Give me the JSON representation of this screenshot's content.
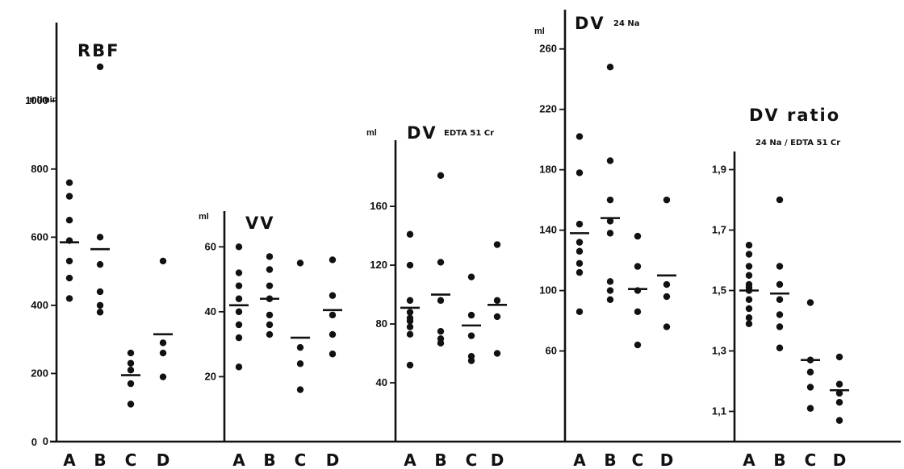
{
  "chart_data": [
    {
      "type": "scatter",
      "title": "RBF",
      "unit": "ml/min",
      "categories": [
        "A",
        "B",
        "C",
        "D"
      ],
      "yticks": [
        0,
        200,
        400,
        600,
        800,
        1000
      ],
      "ylim": [
        0,
        1230
      ],
      "points": [
        [
          420,
          480,
          530,
          590,
          650,
          720,
          760
        ],
        [
          380,
          400,
          440,
          520,
          600,
          1100
        ],
        [
          110,
          170,
          210,
          230,
          260
        ],
        [
          190,
          260,
          290,
          530
        ]
      ],
      "means": [
        585,
        565,
        195,
        315
      ]
    },
    {
      "type": "scatter",
      "title": "VV",
      "unit": "ml",
      "categories": [
        "A",
        "B",
        "C",
        "D"
      ],
      "yticks": [
        20,
        40,
        60
      ],
      "ylim": [
        0,
        71
      ],
      "points": [
        [
          23,
          32,
          36,
          40,
          44,
          48,
          52,
          60
        ],
        [
          33,
          36,
          39,
          44,
          48,
          53,
          57
        ],
        [
          16,
          24,
          29,
          55
        ],
        [
          27,
          33,
          39,
          45,
          56
        ]
      ],
      "means": [
        42,
        44,
        32,
        40.5
      ]
    },
    {
      "type": "scatter",
      "title": "DV",
      "subtitle": "EDTA 51 Cr",
      "unit": "ml",
      "categories": [
        "A",
        "B",
        "C",
        "D"
      ],
      "yticks": [
        40,
        80,
        120,
        160
      ],
      "ylim": [
        0,
        205
      ],
      "points": [
        [
          52,
          73,
          78,
          82,
          84,
          88,
          96,
          120,
          141
        ],
        [
          67,
          70,
          75,
          96,
          122,
          181
        ],
        [
          55,
          58,
          72,
          86,
          112
        ],
        [
          60,
          85,
          96,
          134
        ]
      ],
      "means": [
        91,
        100,
        79,
        93
      ]
    },
    {
      "type": "scatter",
      "title": "DV",
      "subtitle": "24 Na",
      "unit": "ml",
      "categories": [
        "A",
        "B",
        "C",
        "D"
      ],
      "yticks": [
        60,
        100,
        140,
        180,
        220,
        260
      ],
      "ylim": [
        0,
        286
      ],
      "points": [
        [
          86,
          112,
          118,
          126,
          132,
          144,
          178,
          202
        ],
        [
          94,
          100,
          106,
          138,
          146,
          160,
          186,
          248
        ],
        [
          64,
          86,
          100,
          116,
          136
        ],
        [
          76,
          96,
          104,
          160
        ]
      ],
      "means": [
        138,
        148,
        101,
        110
      ]
    },
    {
      "type": "scatter",
      "title": "DV ratio",
      "subtitle": "24 Na / EDTA 51 Cr",
      "unit": "",
      "categories": [
        "A",
        "B",
        "C",
        "D"
      ],
      "yticks": [
        "1,1",
        "1,3",
        "1,5",
        "1,7",
        "1,9"
      ],
      "ylim": [
        1.0,
        1.96
      ],
      "points": [
        [
          1.39,
          1.41,
          1.44,
          1.47,
          1.5,
          1.51,
          1.52,
          1.55,
          1.58,
          1.62,
          1.65
        ],
        [
          1.31,
          1.38,
          1.42,
          1.47,
          1.52,
          1.58,
          1.8
        ],
        [
          1.11,
          1.18,
          1.23,
          1.27,
          1.46
        ],
        [
          1.07,
          1.13,
          1.16,
          1.19,
          1.28
        ]
      ],
      "means": [
        1.5,
        1.49,
        1.27,
        1.17
      ]
    }
  ]
}
